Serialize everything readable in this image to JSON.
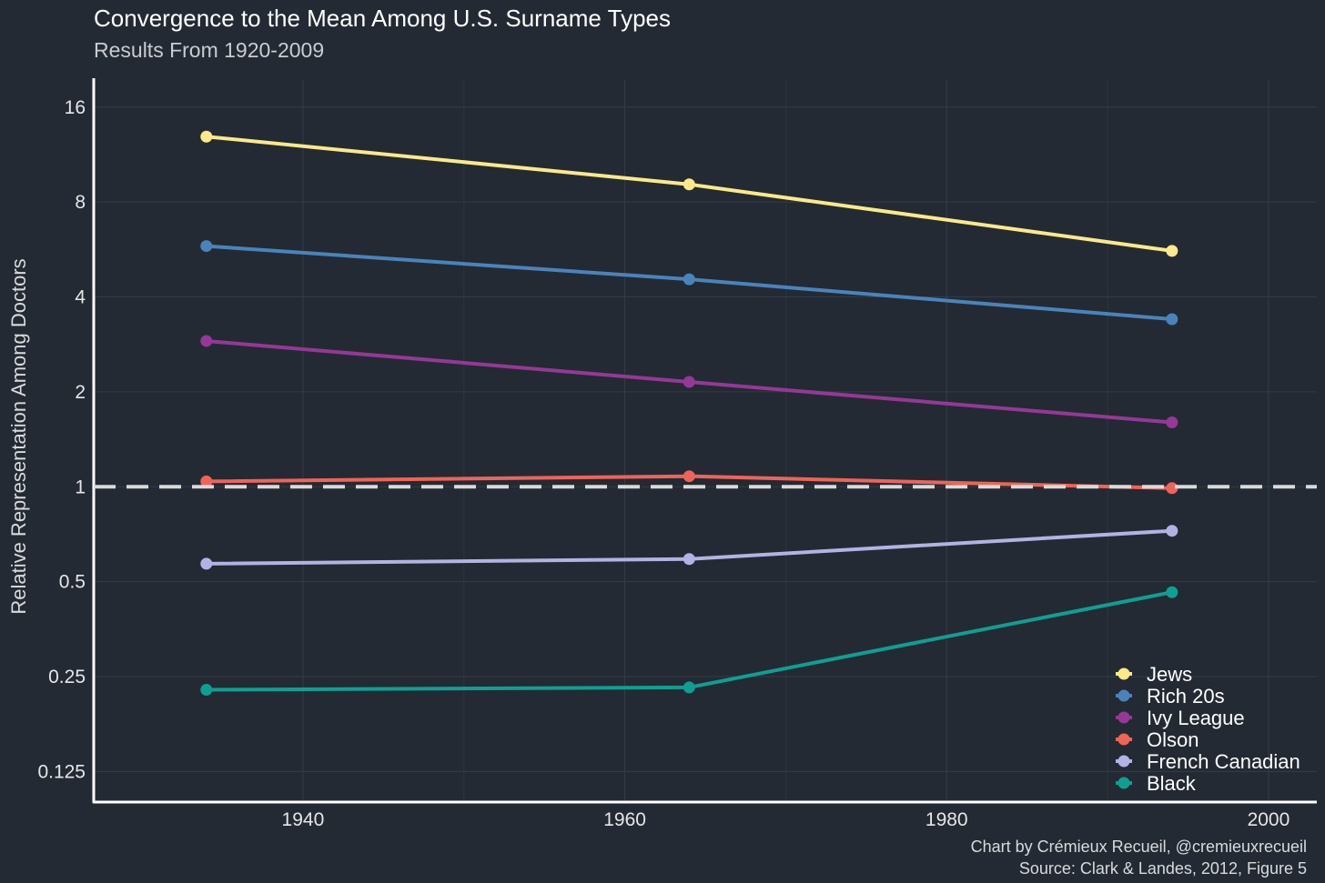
{
  "chart_data": {
    "type": "line",
    "title": "Convergence to the Mean Among U.S. Surname Types",
    "subtitle": "Results From 1920-2009",
    "xlabel": "",
    "ylabel": "Relative Representation Among Doctors",
    "y_scale": "log2",
    "xlim": [
      1927,
      2003
    ],
    "ylim": [
      0.1,
      19.5
    ],
    "x_ticks": [
      1940,
      1960,
      1980,
      2000
    ],
    "y_ticks": [
      0.125,
      0.25,
      0.5,
      1,
      2,
      4,
      8,
      16
    ],
    "y_tick_labels": [
      "0.125",
      "0.25",
      "0.5",
      "1",
      "2",
      "4",
      "8",
      "16"
    ],
    "grid": true,
    "reference_line": {
      "y": 1,
      "style": "dashed",
      "color": "#d9d9d9"
    },
    "legend_position": "bottom-right",
    "series": [
      {
        "name": "Jews",
        "color": "#fbe98a",
        "x": [
          1934,
          1964,
          1994
        ],
        "y": [
          12.9,
          9.1,
          5.6
        ]
      },
      {
        "name": "Rich 20s",
        "color": "#4a83bc",
        "x": [
          1934,
          1964,
          1994
        ],
        "y": [
          5.8,
          4.55,
          3.4
        ]
      },
      {
        "name": "Ivy League",
        "color": "#953897",
        "x": [
          1934,
          1964,
          1994
        ],
        "y": [
          2.9,
          2.15,
          1.6
        ]
      },
      {
        "name": "Olson",
        "color": "#f06357",
        "x": [
          1934,
          1964,
          1994
        ],
        "y": [
          1.04,
          1.08,
          0.99
        ]
      },
      {
        "name": "French Canadian",
        "color": "#b1b3e4",
        "x": [
          1934,
          1964,
          1994
        ],
        "y": [
          0.57,
          0.59,
          0.725
        ]
      },
      {
        "name": "Black",
        "color": "#0f9f92",
        "x": [
          1934,
          1964,
          1994
        ],
        "y": [
          0.227,
          0.231,
          0.463
        ]
      }
    ]
  },
  "caption": {
    "line1": "Chart by Crémieux Recueil, @cremieuxrecueil",
    "line2": "Source: Clark & Landes, 2012, Figure 5"
  }
}
